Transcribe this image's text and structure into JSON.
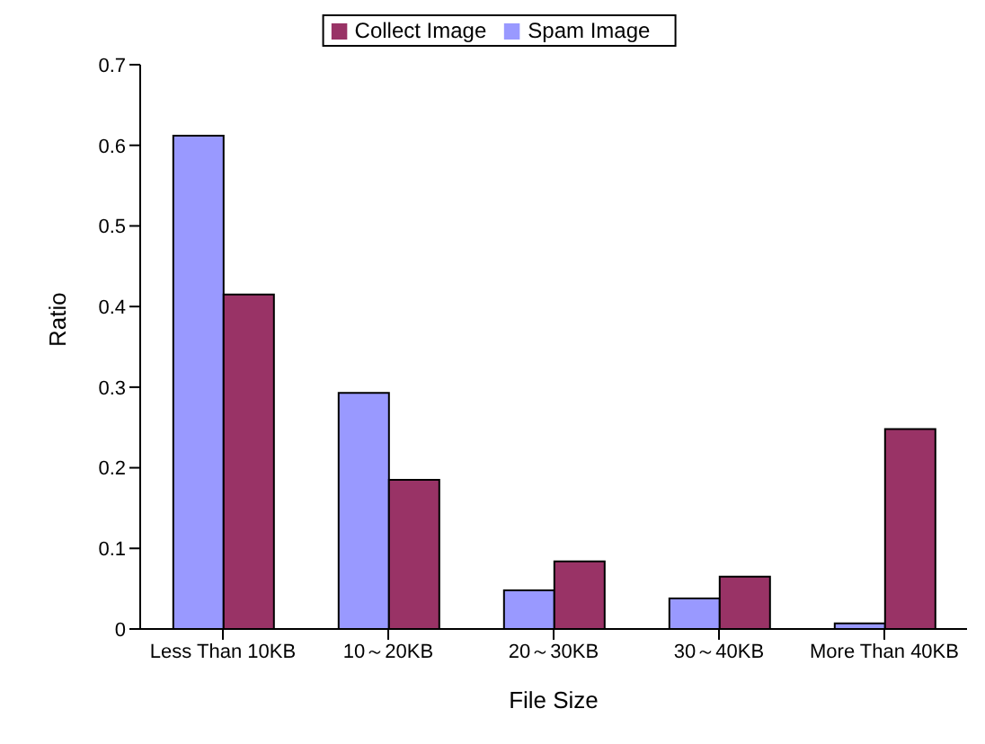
{
  "chart_data": {
    "type": "bar",
    "xlabel": "File Size",
    "ylabel": "Ratio",
    "categories": [
      "Less Than 10KB",
      "10～20KB",
      "20～30KB",
      "30～40KB",
      "More Than 40KB"
    ],
    "series": [
      {
        "name": "Spam Image",
        "color": "#9999ff",
        "values": [
          0.612,
          0.293,
          0.048,
          0.038,
          0.007
        ]
      },
      {
        "name": "Collect Image",
        "color": "#993366",
        "values": [
          0.415,
          0.185,
          0.084,
          0.065,
          0.248
        ]
      }
    ],
    "ylim": [
      0,
      0.7
    ],
    "yticks": [
      0,
      0.1,
      0.2,
      0.3,
      0.4,
      0.5,
      0.6,
      0.7
    ],
    "grid": false,
    "legend": "top"
  }
}
